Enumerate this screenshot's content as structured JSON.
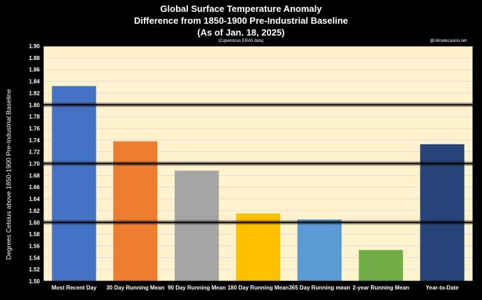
{
  "chart_data": {
    "type": "bar",
    "title": "Global Surface Temperature Anomaly",
    "subtitle": "Difference from 1850-1900 Pre-Industrial Baseline",
    "as_of": "(As of Jan. 18, 2025)",
    "source_note": "(Copernicus ERA5 data)",
    "credit": "@climatecasino.net",
    "ylabel": "Degrees Celsius above 1850-1900 Pre-Industrial Baseline",
    "xlabel": "",
    "ylim": [
      1.5,
      1.9
    ],
    "ytick_step": 0.02,
    "yticks": [
      "1.50",
      "1.52",
      "1.54",
      "1.56",
      "1.58",
      "1.60",
      "1.62",
      "1.64",
      "1.66",
      "1.68",
      "1.70",
      "1.72",
      "1.74",
      "1.76",
      "1.78",
      "1.80",
      "1.82",
      "1.84",
      "1.86",
      "1.88",
      "1.90"
    ],
    "reference_lines": [
      1.6,
      1.7,
      1.8
    ],
    "grid": true,
    "plot_background": "#FFF2CC",
    "categories": [
      "Most Recent Day",
      "30 Day Running Mean",
      "90 Day Running Mean",
      "180 Day Running Mean",
      "365 Day Running mean",
      "2-year Running Mean",
      "Year-to-Date"
    ],
    "values": [
      1.832,
      1.738,
      1.688,
      1.615,
      1.605,
      1.553,
      1.733
    ],
    "colors": [
      "#4472C4",
      "#ED7D31",
      "#A5A5A5",
      "#FFC000",
      "#5B9BD5",
      "#70AD47",
      "#264478"
    ]
  }
}
